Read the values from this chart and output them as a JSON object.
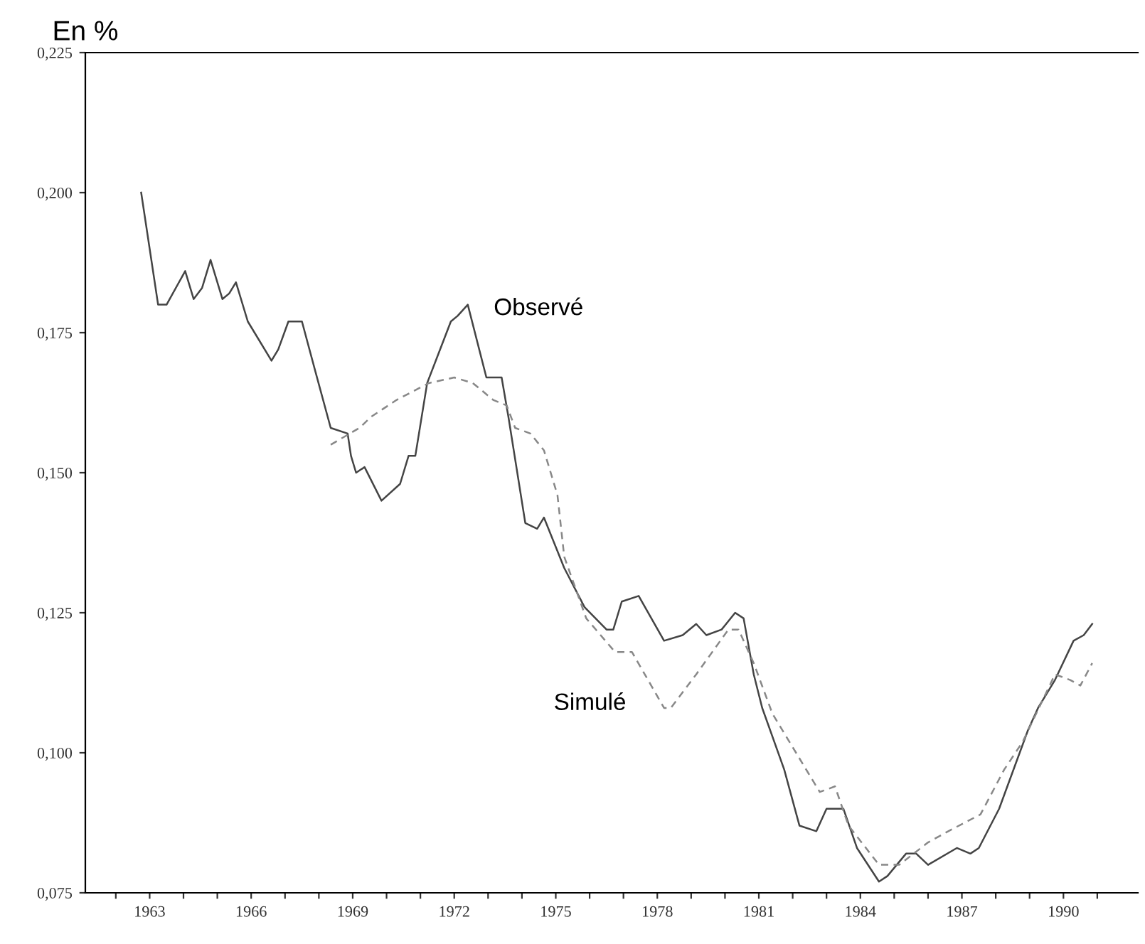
{
  "chart_data": {
    "type": "line",
    "ylabel": "En %",
    "xlim": [
      1961.1,
      1992.2
    ],
    "ylim": [
      0.075,
      0.225
    ],
    "xticks": [
      {
        "value": 1962,
        "label": null
      },
      1963,
      {
        "value": 1964,
        "label": null
      },
      {
        "value": 1965,
        "label": null
      },
      1966,
      {
        "value": 1967,
        "label": null
      },
      {
        "value": 1968,
        "label": null
      },
      1969,
      {
        "value": 1970,
        "label": null
      },
      {
        "value": 1971,
        "label": null
      },
      1972,
      {
        "value": 1973,
        "label": null
      },
      {
        "value": 1974,
        "label": null
      },
      1975,
      {
        "value": 1976,
        "label": null
      },
      {
        "value": 1977,
        "label": null
      },
      1978,
      {
        "value": 1979,
        "label": null
      },
      {
        "value": 1980,
        "label": null
      },
      1981,
      {
        "value": 1982,
        "label": null
      },
      {
        "value": 1983,
        "label": null
      },
      1984,
      {
        "value": 1985,
        "label": null
      },
      {
        "value": 1986,
        "label": null
      },
      1987,
      {
        "value": 1988,
        "label": null
      },
      {
        "value": 1989,
        "label": null
      },
      1990,
      {
        "value": 1991,
        "label": null
      }
    ],
    "yticks": [
      {
        "value": 0.075,
        "label": "0,075"
      },
      {
        "value": 0.1,
        "label": "0,100"
      },
      {
        "value": 0.125,
        "label": "0,125"
      },
      {
        "value": 0.15,
        "label": "0,150"
      },
      {
        "value": 0.175,
        "label": "0,175"
      },
      {
        "value": 0.2,
        "label": "0,200"
      },
      {
        "value": 0.225,
        "label": "0,225"
      }
    ],
    "grid": false,
    "marker": "none",
    "series": [
      {
        "color": "#444444",
        "line_style": "solid",
        "x": [
          1962.75,
          1963.25,
          1963.5,
          1964.05,
          1964.3,
          1964.55,
          1964.8,
          1965.15,
          1965.35,
          1965.55,
          1965.9,
          1966.6,
          1966.8,
          1967.1,
          1967.5,
          1967.9,
          1968.35,
          1968.85,
          1968.95,
          1969.1,
          1969.35,
          1969.85,
          1970.4,
          1970.65,
          1970.85,
          1971.2,
          1971.9,
          1972.1,
          1972.4,
          1972.95,
          1973.4,
          1973.6,
          1974.1,
          1974.45,
          1974.65,
          1975.25,
          1975.85,
          1976.5,
          1976.7,
          1976.95,
          1977.45,
          1978.2,
          1978.75,
          1979.15,
          1979.45,
          1979.9,
          1980.3,
          1980.55,
          1980.85,
          1981.1,
          1981.75,
          1982.2,
          1982.7,
          1983.0,
          1983.5,
          1983.9,
          1984.55,
          1984.8,
          1985.35,
          1985.65,
          1986.0,
          1986.85,
          1987.25,
          1987.5,
          1988.1,
          1988.95,
          1989.25,
          1989.75,
          1990.3,
          1990.6,
          1990.85
        ],
        "values": [
          0.2,
          0.18,
          0.18,
          0.186,
          0.181,
          0.183,
          0.188,
          0.181,
          0.182,
          0.184,
          0.177,
          0.17,
          0.172,
          0.177,
          0.177,
          0.168,
          0.158,
          0.157,
          0.153,
          0.15,
          0.151,
          0.145,
          0.148,
          0.153,
          0.153,
          0.166,
          0.177,
          0.178,
          0.18,
          0.167,
          0.167,
          0.16,
          0.141,
          0.14,
          0.142,
          0.133,
          0.126,
          0.122,
          0.122,
          0.127,
          0.128,
          0.12,
          0.121,
          0.123,
          0.121,
          0.122,
          0.125,
          0.124,
          0.114,
          0.108,
          0.097,
          0.087,
          0.086,
          0.09,
          0.09,
          0.083,
          0.077,
          0.078,
          0.082,
          0.082,
          0.08,
          0.083,
          0.082,
          0.083,
          0.09,
          0.104,
          0.108,
          0.113,
          0.12,
          0.121,
          0.123
        ]
      },
      {
        "color": "#888888",
        "line_style": "dashed",
        "x": [
          1968.35,
          1969.2,
          1969.55,
          1970.3,
          1971.25,
          1972.0,
          1972.55,
          1973.15,
          1973.55,
          1973.8,
          1974.25,
          1974.65,
          1975.05,
          1975.25,
          1975.9,
          1976.75,
          1977.25,
          1978.2,
          1978.4,
          1979.15,
          1980.1,
          1980.4,
          1980.85,
          1981.4,
          1982.1,
          1982.8,
          1983.25,
          1983.65,
          1984.55,
          1985.15,
          1986.0,
          1986.6,
          1987.55,
          1988.25,
          1988.8,
          1989.75,
          1990.2,
          1990.5,
          1990.85
        ],
        "values": [
          0.155,
          0.158,
          0.16,
          0.163,
          0.166,
          0.167,
          0.166,
          0.163,
          0.162,
          0.158,
          0.157,
          0.154,
          0.146,
          0.135,
          0.124,
          0.118,
          0.118,
          0.108,
          0.108,
          0.114,
          0.122,
          0.122,
          0.116,
          0.107,
          0.1,
          0.093,
          0.094,
          0.087,
          0.08,
          0.08,
          0.084,
          0.086,
          0.089,
          0.097,
          0.102,
          0.114,
          0.113,
          0.112,
          0.116
        ]
      }
    ],
    "annotations": [
      "Observé",
      "Simulé"
    ]
  }
}
